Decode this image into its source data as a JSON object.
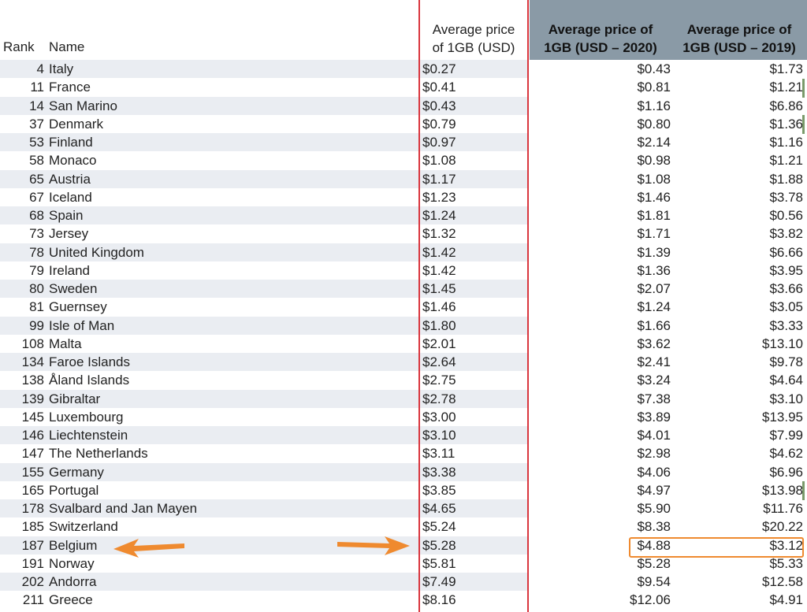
{
  "headers": {
    "rank": "Rank",
    "name": "Name",
    "avg_line1": "Average price",
    "avg_line2": "of 1GB (USD)",
    "y2020_line1": "Average price of",
    "y2020_line2": "1GB (USD – 2020)",
    "y2019_line1": "Average price of",
    "y2019_line2": "1GB (USD – 2019)"
  },
  "rows": [
    {
      "rank": "4",
      "name": "Italy",
      "avg": "$0.27",
      "y2020": "$0.43",
      "y2019": "$1.73"
    },
    {
      "rank": "11",
      "name": "France",
      "avg": "$0.41",
      "y2020": "$0.81",
      "y2019": "$1.21"
    },
    {
      "rank": "14",
      "name": "San Marino",
      "avg": "$0.43",
      "y2020": "$1.16",
      "y2019": "$6.86"
    },
    {
      "rank": "37",
      "name": "Denmark",
      "avg": "$0.79",
      "y2020": "$0.80",
      "y2019": "$1.36"
    },
    {
      "rank": "53",
      "name": "Finland",
      "avg": "$0.97",
      "y2020": "$2.14",
      "y2019": "$1.16"
    },
    {
      "rank": "58",
      "name": "Monaco",
      "avg": "$1.08",
      "y2020": "$0.98",
      "y2019": "$1.21"
    },
    {
      "rank": "65",
      "name": "Austria",
      "avg": "$1.17",
      "y2020": "$1.08",
      "y2019": "$1.88"
    },
    {
      "rank": "67",
      "name": "Iceland",
      "avg": "$1.23",
      "y2020": "$1.46",
      "y2019": "$3.78"
    },
    {
      "rank": "68",
      "name": "Spain",
      "avg": "$1.24",
      "y2020": "$1.81",
      "y2019": "$0.56"
    },
    {
      "rank": "73",
      "name": "Jersey",
      "avg": "$1.32",
      "y2020": "$1.71",
      "y2019": "$3.82"
    },
    {
      "rank": "78",
      "name": "United Kingdom",
      "avg": "$1.42",
      "y2020": "$1.39",
      "y2019": "$6.66"
    },
    {
      "rank": "79",
      "name": "Ireland",
      "avg": "$1.42",
      "y2020": "$1.36",
      "y2019": "$3.95"
    },
    {
      "rank": "80",
      "name": "Sweden",
      "avg": "$1.45",
      "y2020": "$2.07",
      "y2019": "$3.66"
    },
    {
      "rank": "81",
      "name": "Guernsey",
      "avg": "$1.46",
      "y2020": "$1.24",
      "y2019": "$3.05"
    },
    {
      "rank": "99",
      "name": "Isle of Man",
      "avg": "$1.80",
      "y2020": "$1.66",
      "y2019": "$3.33"
    },
    {
      "rank": "108",
      "name": "Malta",
      "avg": "$2.01",
      "y2020": "$3.62",
      "y2019": "$13.10"
    },
    {
      "rank": "134",
      "name": "Faroe Islands",
      "avg": "$2.64",
      "y2020": "$2.41",
      "y2019": "$9.78"
    },
    {
      "rank": "138",
      "name": "Åland Islands",
      "avg": "$2.75",
      "y2020": "$3.24",
      "y2019": "$4.64"
    },
    {
      "rank": "139",
      "name": "Gibraltar",
      "avg": "$2.78",
      "y2020": "$7.38",
      "y2019": "$3.10"
    },
    {
      "rank": "145",
      "name": "Luxembourg",
      "avg": "$3.00",
      "y2020": "$3.89",
      "y2019": "$13.95"
    },
    {
      "rank": "146",
      "name": "Liechtenstein",
      "avg": "$3.10",
      "y2020": "$4.01",
      "y2019": "$7.99"
    },
    {
      "rank": "147",
      "name": "The Netherlands",
      "avg": "$3.11",
      "y2020": "$2.98",
      "y2019": "$4.62"
    },
    {
      "rank": "155",
      "name": "Germany",
      "avg": "$3.38",
      "y2020": "$4.06",
      "y2019": "$6.96"
    },
    {
      "rank": "165",
      "name": "Portugal",
      "avg": "$3.85",
      "y2020": "$4.97",
      "y2019": "$13.98"
    },
    {
      "rank": "178",
      "name": "Svalbard and Jan Mayen",
      "avg": "$4.65",
      "y2020": "$5.90",
      "y2019": "$11.76"
    },
    {
      "rank": "185",
      "name": "Switzerland",
      "avg": "$5.24",
      "y2020": "$8.38",
      "y2019": "$20.22"
    },
    {
      "rank": "187",
      "name": "Belgium",
      "avg": "$5.28",
      "y2020": "$4.88",
      "y2019": "$3.12",
      "highlighted": true
    },
    {
      "rank": "191",
      "name": "Norway",
      "avg": "$5.81",
      "y2020": "$5.28",
      "y2019": "$5.33"
    },
    {
      "rank": "202",
      "name": "Andorra",
      "avg": "$7.49",
      "y2020": "$9.54",
      "y2019": "$12.58"
    },
    {
      "rank": "211",
      "name": "Greece",
      "avg": "$8.16",
      "y2020": "$12.06",
      "y2019": "$4.91"
    }
  ],
  "colors": {
    "header_dark": "#8a9aa6",
    "row_alt": "#eaedf2",
    "red_border": "#d9363e",
    "highlight_orange": "#ef8a2f"
  }
}
